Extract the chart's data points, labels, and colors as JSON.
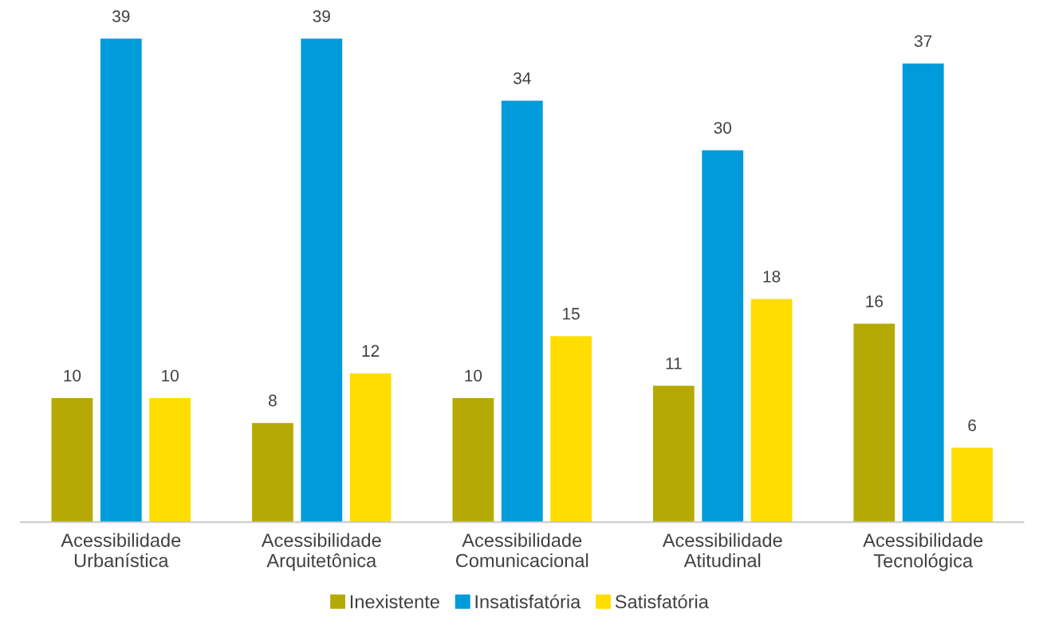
{
  "chart_data": {
    "type": "bar",
    "categories": [
      "Acessibilidade\nUrbanística",
      "Acessibilidade\nArquitetônica",
      "Acessibilidade\nComunicacional",
      "Acessibilidade\nAtitudinal",
      "Acessibilidade\nTecnológica"
    ],
    "series": [
      {
        "name": "Inexistente",
        "color": "#b5aa05",
        "values": [
          10,
          8,
          10,
          11,
          16
        ]
      },
      {
        "name": "Insatisfatória",
        "color": "#009bdb",
        "values": [
          39,
          39,
          34,
          30,
          37
        ]
      },
      {
        "name": "Satisfatória",
        "color": "#ffdd00",
        "values": [
          10,
          12,
          15,
          18,
          6
        ]
      }
    ],
    "data_labels": true,
    "legend": "bottom",
    "grid": false,
    "tick_labels": "x"
  }
}
